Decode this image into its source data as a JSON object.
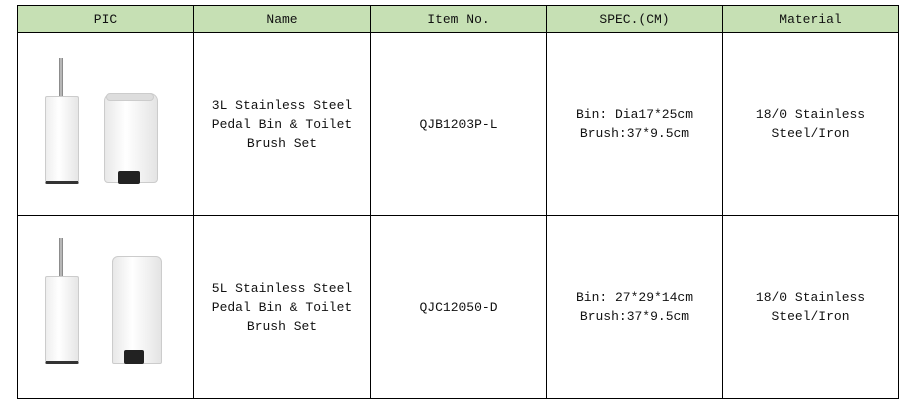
{
  "header": [
    "PIC",
    "Name",
    "Item No.",
    "SPEC.(CM)",
    "Material"
  ],
  "rows": [
    {
      "name": "3L Stainless Steel Pedal Bin & Toilet Brush Set",
      "item": "QJB1203P-L",
      "spec": [
        "Bin: Dia17*25cm",
        "Brush:37*9.5cm"
      ],
      "material": "18/0 Stainless Steel/Iron",
      "image": "round pedal bin and toilet brush"
    },
    {
      "name": "5L Stainless Steel Pedal Bin & Toilet Brush Set",
      "item": "QJC12050-D",
      "spec": [
        "Bin: 27*29*14cm",
        "Brush:37*9.5cm"
      ],
      "material": "18/0 Stainless Steel/Iron",
      "image": "rectangular pedal bin and toilet brush"
    }
  ],
  "colors": {
    "header_bg": "#c6e0b4"
  }
}
